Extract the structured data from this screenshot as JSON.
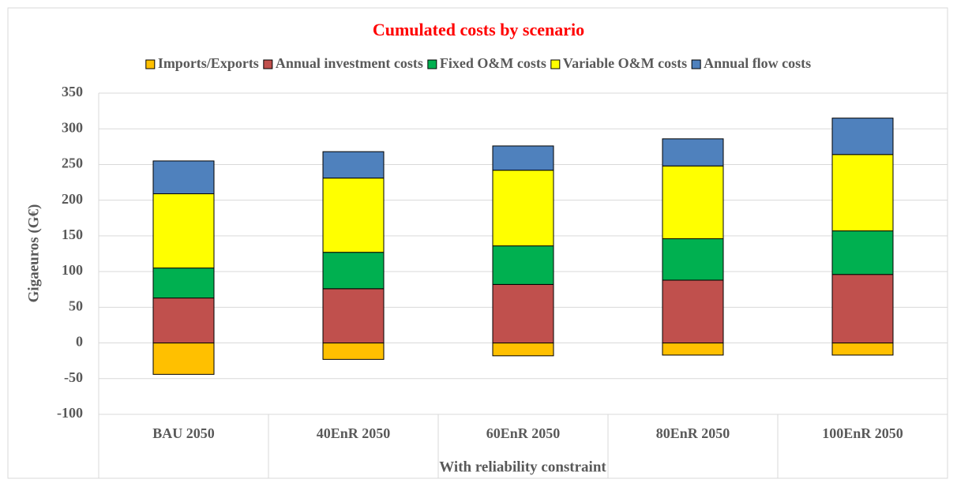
{
  "chart_data": {
    "type": "stacked-bar",
    "title": "Cumulated costs by scenario",
    "y_label": "Gigaeuros (G€)",
    "x_label": "With reliability constraint",
    "categories": [
      "BAU 2050",
      "40EnR 2050",
      "60EnR 2050",
      "80EnR 2050",
      "100EnR 2050"
    ],
    "series": [
      {
        "name": "Imports/Exports",
        "color": "#ffc000",
        "values": [
          -44,
          -23,
          -18,
          -17,
          -17
        ]
      },
      {
        "name": "Annual investment costs",
        "color": "#c0504d",
        "values": [
          63,
          76,
          82,
          88,
          96
        ]
      },
      {
        "name": "Fixed O&M costs",
        "color": "#00b050",
        "values": [
          42,
          51,
          54,
          58,
          61
        ]
      },
      {
        "name": "Variable O&M costs",
        "color": "#ffff00",
        "values": [
          104,
          104,
          106,
          102,
          107
        ]
      },
      {
        "name": "Annual flow costs",
        "color": "#4f81bd",
        "values": [
          46,
          37,
          34,
          38,
          51
        ]
      }
    ],
    "ylim": [
      -100,
      350
    ],
    "yticks": [
      -100,
      -50,
      0,
      50,
      100,
      150,
      200,
      250,
      300,
      350
    ],
    "grid": true,
    "legend": "top"
  }
}
